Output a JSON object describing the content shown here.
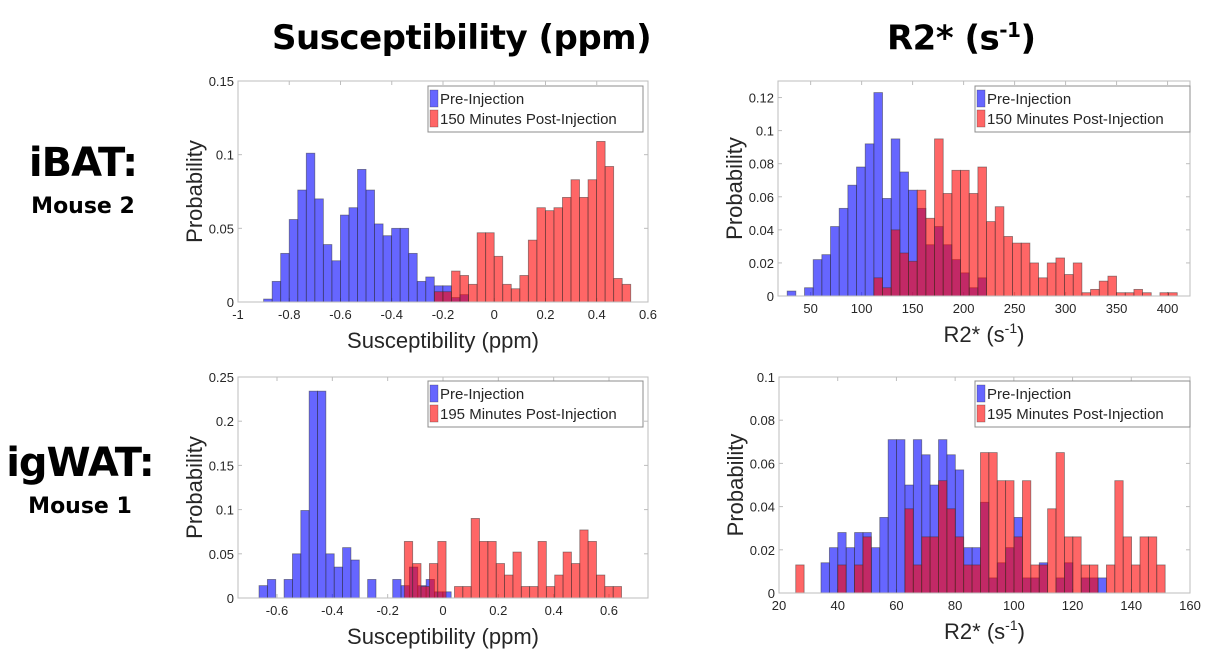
{
  "column_titles": [
    {
      "main": "Susceptibility (ppm)",
      "sup": ""
    },
    {
      "main": "R2* (s",
      "sup": "-1",
      "tail": ")"
    }
  ],
  "row_labels": [
    {
      "tissue": "iBAT:",
      "mouse": "Mouse 2"
    },
    {
      "tissue": "igWAT:",
      "mouse": "Mouse 1"
    }
  ],
  "colors": {
    "pre": "#0000ff",
    "post": "#ff0000",
    "bar_alpha": 0.6
  },
  "chart_data": [
    {
      "type": "bar",
      "id": "ibat-susceptibility",
      "title": "",
      "xlabel": "Susceptibility (ppm)",
      "xlabel_sup": "",
      "ylabel": "Probability",
      "xlim": [
        -1,
        0.6
      ],
      "ylim": [
        0,
        0.15
      ],
      "xticks": [
        -1,
        -0.8,
        -0.6,
        -0.4,
        -0.2,
        0,
        0.2,
        0.4,
        0.6
      ],
      "xtick_labels": [
        "-1",
        "-0.8",
        "-0.6",
        "-0.4",
        "-0.2",
        "0",
        "0.2",
        "0.4",
        "0.6"
      ],
      "yticks": [
        0,
        0.05,
        0.1,
        0.15
      ],
      "ytick_labels": [
        "0",
        "0.05",
        "0.1",
        "0.15"
      ],
      "legend": [
        "Pre-Injection",
        "150 Minutes Post-Injection"
      ],
      "legend_position": "top-right",
      "bin_width": 0.0333,
      "series": [
        {
          "name": "Pre-Injection",
          "bin_start": -0.9,
          "values": [
            0.002,
            0.014,
            0.033,
            0.056,
            0.076,
            0.101,
            0.07,
            0.039,
            0.028,
            0.059,
            0.064,
            0.09,
            0.076,
            0.053,
            0.045,
            0.05,
            0.05,
            0.033,
            0.014,
            0.017,
            0.011,
            0.011,
            0.003,
            0.005
          ]
        },
        {
          "name": "150 Minutes Post-Injection",
          "bin_start": -0.2333,
          "values": [
            0.007,
            0.007,
            0.021,
            0.018,
            0.012,
            0.047,
            0.047,
            0.031,
            0.012,
            0.009,
            0.018,
            0.042,
            0.064,
            0.062,
            0.064,
            0.071,
            0.083,
            0.071,
            0.083,
            0.109,
            0.092,
            0.016,
            0.012
          ]
        }
      ]
    },
    {
      "type": "bar",
      "id": "ibat-r2star",
      "title": "",
      "xlabel": "R2* (s",
      "xlabel_sup": "-1",
      "xlabel_tail": ")",
      "ylabel": "Probability",
      "xlim": [
        18,
        422
      ],
      "ylim": [
        0,
        0.13
      ],
      "xticks": [
        50,
        100,
        150,
        200,
        250,
        300,
        350,
        400
      ],
      "xtick_labels": [
        "50",
        "100",
        "150",
        "200",
        "250",
        "300",
        "350",
        "400"
      ],
      "yticks": [
        0,
        0.02,
        0.04,
        0.06,
        0.08,
        0.1,
        0.12
      ],
      "ytick_labels": [
        "0",
        "0.02",
        "0.04",
        "0.06",
        "0.08",
        "0.1",
        "0.12"
      ],
      "legend": [
        "Pre-Injection",
        "150 Minutes Post-Injection"
      ],
      "legend_position": "top-right",
      "bin_width": 8.5,
      "series": [
        {
          "name": "Pre-Injection",
          "bin_start": 27,
          "values": [
            0.003,
            0,
            0.005,
            0.022,
            0.025,
            0.042,
            0.053,
            0.067,
            0.078,
            0.092,
            0.123,
            0.059,
            0.095,
            0.075,
            0.064,
            0.053,
            0.031,
            0.042,
            0.031,
            0.022,
            0.014,
            0.005,
            0.011
          ]
        },
        {
          "name": "150 Minutes Post-Injection",
          "bin_start": 112,
          "values": [
            0.011,
            0.005,
            0.04,
            0.026,
            0.021,
            0.064,
            0.047,
            0.095,
            0.062,
            0.076,
            0.076,
            0.062,
            0.078,
            0.045,
            0.054,
            0.036,
            0.032,
            0.032,
            0.02,
            0.011,
            0.02,
            0.023,
            0.013,
            0.02,
            0.002,
            0.004,
            0.009,
            0.012,
            0.002,
            0.002,
            0.004,
            0.002,
            0,
            0.002,
            0.002
          ]
        }
      ]
    },
    {
      "type": "bar",
      "id": "igwat-susceptibility",
      "title": "",
      "xlabel": "Susceptibility (ppm)",
      "xlabel_sup": "",
      "ylabel": "Probability",
      "xlim": [
        -0.741,
        0.741
      ],
      "ylim": [
        0,
        0.25
      ],
      "xticks": [
        -0.6,
        -0.4,
        -0.2,
        0,
        0.2,
        0.4,
        0.6
      ],
      "xtick_labels": [
        "-0.6",
        "-0.4",
        "-0.2",
        "0",
        "0.2",
        "0.4",
        "0.6"
      ],
      "yticks": [
        0,
        0.05,
        0.1,
        0.15,
        0.2,
        0.25
      ],
      "ytick_labels": [
        "0",
        "0.05",
        "0.1",
        "0.15",
        "0.2",
        "0.25"
      ],
      "legend": [
        "Pre-Injection",
        "195 Minutes Post-Injection"
      ],
      "legend_position": "top-right",
      "bin_width": 0.0302,
      "series": [
        {
          "name": "Pre-Injection",
          "bin_start": -0.665,
          "values": [
            0.014,
            0.021,
            0,
            0.021,
            0.05,
            0.099,
            0.234,
            0.234,
            0.05,
            0.035,
            0.057,
            0.043,
            0,
            0.021,
            0,
            0,
            0.021,
            0.014,
            0.035,
            0.014,
            0.021,
            0.007,
            0.007
          ]
        },
        {
          "name": "195 Minutes Post-Injection",
          "bin_start": -0.1398,
          "values": [
            0.064,
            0.039,
            0.013,
            0.039,
            0.064,
            0,
            0.013,
            0.013,
            0.09,
            0.064,
            0.064,
            0.039,
            0.026,
            0.052,
            0.013,
            0.013,
            0.064,
            0.013,
            0.026,
            0.052,
            0.039,
            0.077,
            0.064,
            0.026,
            0.013,
            0.013
          ]
        }
      ]
    },
    {
      "type": "bar",
      "id": "igwat-r2star",
      "title": "",
      "xlabel": "R2* (s",
      "xlabel_sup": "-1",
      "xlabel_tail": ")",
      "ylabel": "Probability",
      "xlim": [
        20,
        160
      ],
      "ylim": [
        0,
        0.1
      ],
      "xticks": [
        20,
        40,
        60,
        80,
        100,
        120,
        140,
        160
      ],
      "xtick_labels": [
        "20",
        "40",
        "60",
        "80",
        "100",
        "120",
        "140",
        "160"
      ],
      "yticks": [
        0,
        0.02,
        0.04,
        0.06,
        0.08,
        0.1
      ],
      "ytick_labels": [
        "0",
        "0.02",
        "0.04",
        "0.06",
        "0.08",
        "0.1"
      ],
      "legend": [
        "Pre-Injection",
        "195 Minutes Post-Injection"
      ],
      "legend_position": "top-right",
      "bin_width": 2.86,
      "series": [
        {
          "name": "Pre-Injection",
          "bin_start": 34.3,
          "values": [
            0.014,
            0.021,
            0.028,
            0.021,
            0.028,
            0.028,
            0.021,
            0.035,
            0.071,
            0.071,
            0.05,
            0.071,
            0.064,
            0.05,
            0.071,
            0.064,
            0.057,
            0.021,
            0.021,
            0.042,
            0.007,
            0.014,
            0.021,
            0.035,
            0.007,
            0.007,
            0.014,
            0,
            0.007,
            0.014,
            0,
            0.007,
            0.007,
            0.007
          ]
        },
        {
          "name": "195 Minutes Post-Injection",
          "bin_start": 25.7,
          "values": [
            0.013,
            0,
            0,
            0,
            0,
            0.013,
            0,
            0.013,
            0.026,
            0,
            0,
            0,
            0,
            0.039,
            0.013,
            0.026,
            0.026,
            0.052,
            0.039,
            0.026,
            0.013,
            0.013,
            0.065,
            0.065,
            0.052,
            0.052,
            0.026,
            0.052,
            0.013,
            0.013,
            0.039,
            0.065,
            0.026,
            0.026,
            0.013,
            0.013,
            0,
            0.013,
            0.052,
            0.026,
            0.013,
            0.026,
            0.026,
            0.013
          ]
        }
      ]
    }
  ]
}
